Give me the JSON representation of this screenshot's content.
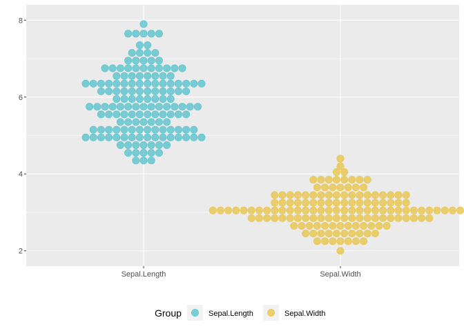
{
  "chart_data": {
    "type": "scatter",
    "subtype": "beeswarm",
    "title": "",
    "xlabel": "",
    "ylabel": "",
    "categories": [
      "Sepal.Length",
      "Sepal.Width"
    ],
    "ylim": [
      1.6,
      8.4
    ],
    "yticks": [
      2,
      4,
      6,
      8
    ],
    "grid": true,
    "legend_title": "Group",
    "legend_position": "bottom",
    "series": [
      {
        "name": "Sepal.Length",
        "color": "#5bc3cc",
        "rows": [
          {
            "y": 7.9,
            "count": 1
          },
          {
            "y": 7.65,
            "count": 5
          },
          {
            "y": 7.35,
            "count": 2
          },
          {
            "y": 7.15,
            "count": 4
          },
          {
            "y": 6.95,
            "count": 5
          },
          {
            "y": 6.75,
            "count": 11
          },
          {
            "y": 6.55,
            "count": 8
          },
          {
            "y": 6.35,
            "count": 16
          },
          {
            "y": 6.15,
            "count": 12
          },
          {
            "y": 5.95,
            "count": 8
          },
          {
            "y": 5.75,
            "count": 15
          },
          {
            "y": 5.55,
            "count": 12
          },
          {
            "y": 5.35,
            "count": 7
          },
          {
            "y": 5.15,
            "count": 14
          },
          {
            "y": 4.95,
            "count": 16
          },
          {
            "y": 4.75,
            "count": 7
          },
          {
            "y": 4.55,
            "count": 5
          },
          {
            "y": 4.35,
            "count": 3
          }
        ]
      },
      {
        "name": "Sepal.Width",
        "color": "#e8c64e",
        "rows": [
          {
            "y": 4.4,
            "count": 1
          },
          {
            "y": 4.2,
            "count": 1
          },
          {
            "y": 4.05,
            "count": 2
          },
          {
            "y": 3.85,
            "count": 8
          },
          {
            "y": 3.65,
            "count": 7
          },
          {
            "y": 3.45,
            "count": 18
          },
          {
            "y": 3.25,
            "count": 18
          },
          {
            "y": 3.05,
            "count": 34
          },
          {
            "y": 2.85,
            "count": 24
          },
          {
            "y": 2.65,
            "count": 13
          },
          {
            "y": 2.45,
            "count": 10
          },
          {
            "y": 2.25,
            "count": 7
          },
          {
            "y": 2.0,
            "count": 1
          }
        ]
      }
    ]
  }
}
